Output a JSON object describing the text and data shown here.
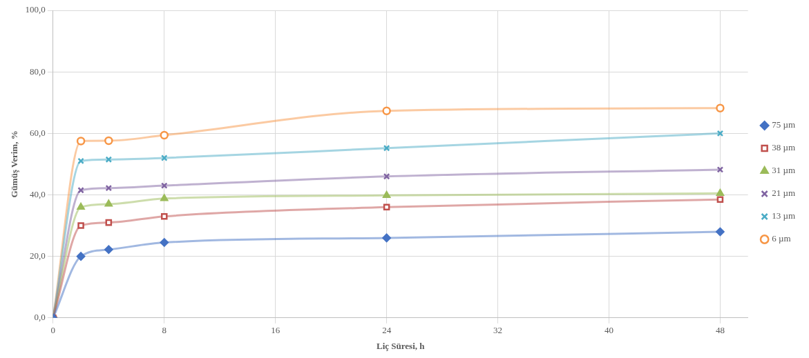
{
  "chart_data": {
    "type": "line",
    "xlabel": "Liç Süresi, h",
    "ylabel": "Gümüş Verim, %",
    "x": [
      0,
      2,
      4,
      8,
      24,
      48
    ],
    "xlim": [
      0,
      50
    ],
    "xticks": [
      0,
      8,
      16,
      24,
      32,
      40,
      48
    ],
    "ylim": [
      0,
      100
    ],
    "yticks": [
      {
        "value": 0,
        "label": "0,0"
      },
      {
        "value": 20,
        "label": "20,0"
      },
      {
        "value": 40,
        "label": "40,0"
      },
      {
        "value": 60,
        "label": "60,0"
      },
      {
        "value": 80,
        "label": "80,0"
      },
      {
        "value": 100,
        "label": "100,0"
      }
    ],
    "grid": true,
    "legend": "right",
    "series": [
      {
        "name": "75 µm",
        "color": "#4472c4",
        "marker": "diamond",
        "values": [
          0,
          20,
          22.2,
          24.5,
          26,
          28
        ]
      },
      {
        "name": "38 µm",
        "color": "#c0504d",
        "marker": "square",
        "values": [
          0,
          30,
          31,
          33,
          36,
          38.5
        ]
      },
      {
        "name": "31 µm",
        "color": "#9bbb59",
        "marker": "triangle",
        "values": [
          0,
          36,
          37,
          38.8,
          39.8,
          40.5
        ]
      },
      {
        "name": "21 µm",
        "color": "#8064a2",
        "marker": "cross",
        "values": [
          0,
          41.5,
          42.2,
          43,
          46,
          48.2
        ]
      },
      {
        "name": "13 µm",
        "color": "#4bacc6",
        "marker": "cross",
        "values": [
          0,
          51,
          51.5,
          52,
          55.2,
          60
        ]
      },
      {
        "name": "6 µm",
        "color": "#f79646",
        "marker": "circle",
        "values": [
          0,
          57.5,
          57.6,
          59.4,
          67.3,
          68.2
        ]
      }
    ]
  }
}
